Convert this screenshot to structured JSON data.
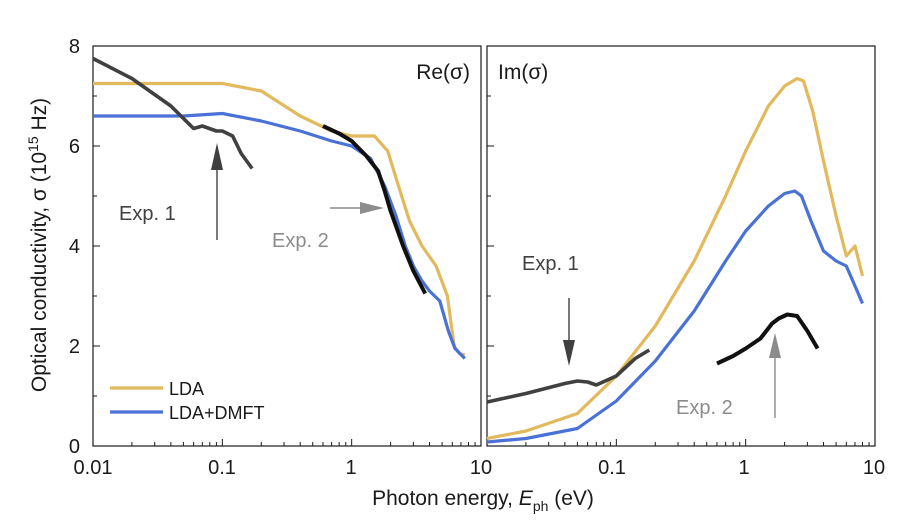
{
  "chart_data": {
    "type": "line",
    "ylabel_main": "Optical conductivity, σ (10",
    "ylabel_sup": "15",
    "ylabel_end": " Hz)",
    "xlabel_main": "Photon energy, ",
    "xlabel_var": "E",
    "xlabel_sub": "ph",
    "xlabel_end": " (eV)",
    "xscale": "log",
    "ylim": [
      0,
      8
    ],
    "yticks": [
      "0",
      "2",
      "4",
      "6",
      "8"
    ],
    "legend": {
      "placement": "bottom-left",
      "entries": [
        {
          "name": "LDA",
          "color": "#E2B95C"
        },
        {
          "name": "LDA+DMFT",
          "color": "#4A72D6"
        }
      ]
    },
    "colors": {
      "lda": "#E2B95C",
      "dmft": "#4A72D6",
      "exp1": "#404040",
      "exp2": "#111111",
      "exp2_label": "#8c8c8c"
    },
    "panels": [
      {
        "title": "Re(σ)",
        "xlim": [
          0.01,
          10
        ],
        "xticks": [
          "0.01",
          "0.1",
          "1",
          "10"
        ],
        "series": [
          {
            "name": "LDA",
            "x": [
              0.01,
              0.05,
              0.1,
              0.2,
              0.4,
              0.7,
              1.0,
              1.5,
              1.9,
              2.3,
              2.8,
              3.5,
              4.5,
              5.5,
              6.2,
              6.8,
              7.5
            ],
            "y": [
              7.25,
              7.25,
              7.25,
              7.1,
              6.6,
              6.3,
              6.2,
              6.2,
              5.9,
              5.2,
              4.5,
              4.0,
              3.6,
              3.0,
              2.0,
              1.85,
              1.82
            ]
          },
          {
            "name": "LDA+DMFT",
            "x": [
              0.01,
              0.05,
              0.1,
              0.2,
              0.4,
              0.7,
              1.0,
              1.4,
              1.8,
              2.2,
              2.6,
              3.0,
              3.5,
              4.0,
              4.8,
              5.6,
              6.3,
              7.5
            ],
            "y": [
              6.6,
              6.6,
              6.65,
              6.5,
              6.3,
              6.1,
              6.0,
              5.75,
              5.2,
              4.6,
              4.0,
              3.6,
              3.3,
              3.1,
              2.9,
              2.3,
              1.95,
              1.75
            ]
          },
          {
            "name": "Exp. 1",
            "x": [
              0.01,
              0.02,
              0.04,
              0.06,
              0.07,
              0.09,
              0.1,
              0.12,
              0.14,
              0.17
            ],
            "y": [
              7.75,
              7.35,
              6.8,
              6.35,
              6.4,
              6.3,
              6.3,
              6.2,
              5.85,
              5.55
            ]
          },
          {
            "name": "Exp. 2",
            "x": [
              0.6,
              0.8,
              1.0,
              1.3,
              1.6,
              1.8,
              2.0,
              2.5,
              3.0,
              3.7
            ],
            "y": [
              6.4,
              6.25,
              6.1,
              5.8,
              5.5,
              5.1,
              4.7,
              4.0,
              3.5,
              3.05
            ]
          }
        ],
        "annotations": [
          {
            "text": "Exp. 1",
            "color": "#404040"
          },
          {
            "text": "Exp. 2",
            "color": "#8c8c8c"
          }
        ]
      },
      {
        "title": "Im(σ)",
        "xlim": [
          0.01,
          10
        ],
        "xticks": [
          "0.01",
          "0.1",
          "1",
          "10"
        ],
        "series": [
          {
            "name": "LDA",
            "x": [
              0.01,
              0.02,
              0.05,
              0.1,
              0.2,
              0.4,
              0.7,
              1.0,
              1.5,
              2.0,
              2.5,
              2.8,
              3.3,
              4.0,
              5.0,
              6.0,
              7.0,
              8.0
            ],
            "y": [
              0.15,
              0.3,
              0.65,
              1.4,
              2.4,
              3.7,
              5.0,
              5.9,
              6.8,
              7.2,
              7.35,
              7.3,
              6.7,
              5.7,
              4.6,
              3.8,
              4.0,
              3.4
            ]
          },
          {
            "name": "LDA+DMFT",
            "x": [
              0.01,
              0.02,
              0.05,
              0.1,
              0.2,
              0.4,
              0.7,
              1.0,
              1.5,
              2.0,
              2.4,
              2.7,
              3.2,
              4.0,
              5.0,
              6.0,
              7.0,
              8.0
            ],
            "y": [
              0.08,
              0.15,
              0.35,
              0.9,
              1.7,
              2.7,
              3.7,
              4.3,
              4.8,
              5.05,
              5.1,
              5.0,
              4.5,
              3.9,
              3.7,
              3.6,
              3.2,
              2.85
            ]
          },
          {
            "name": "Exp. 1",
            "x": [
              0.01,
              0.02,
              0.04,
              0.05,
              0.06,
              0.07,
              0.1,
              0.14,
              0.18
            ],
            "y": [
              0.88,
              1.05,
              1.25,
              1.3,
              1.28,
              1.22,
              1.4,
              1.75,
              1.92
            ]
          },
          {
            "name": "Exp. 2",
            "x": [
              0.6,
              0.8,
              1.0,
              1.3,
              1.6,
              1.8,
              2.1,
              2.5,
              3.0,
              3.6
            ],
            "y": [
              1.65,
              1.8,
              1.95,
              2.15,
              2.45,
              2.55,
              2.63,
              2.6,
              2.3,
              1.95
            ]
          }
        ],
        "annotations": [
          {
            "text": "Exp. 1",
            "color": "#404040"
          },
          {
            "text": "Exp. 2",
            "color": "#8c8c8c"
          }
        ]
      }
    ]
  }
}
